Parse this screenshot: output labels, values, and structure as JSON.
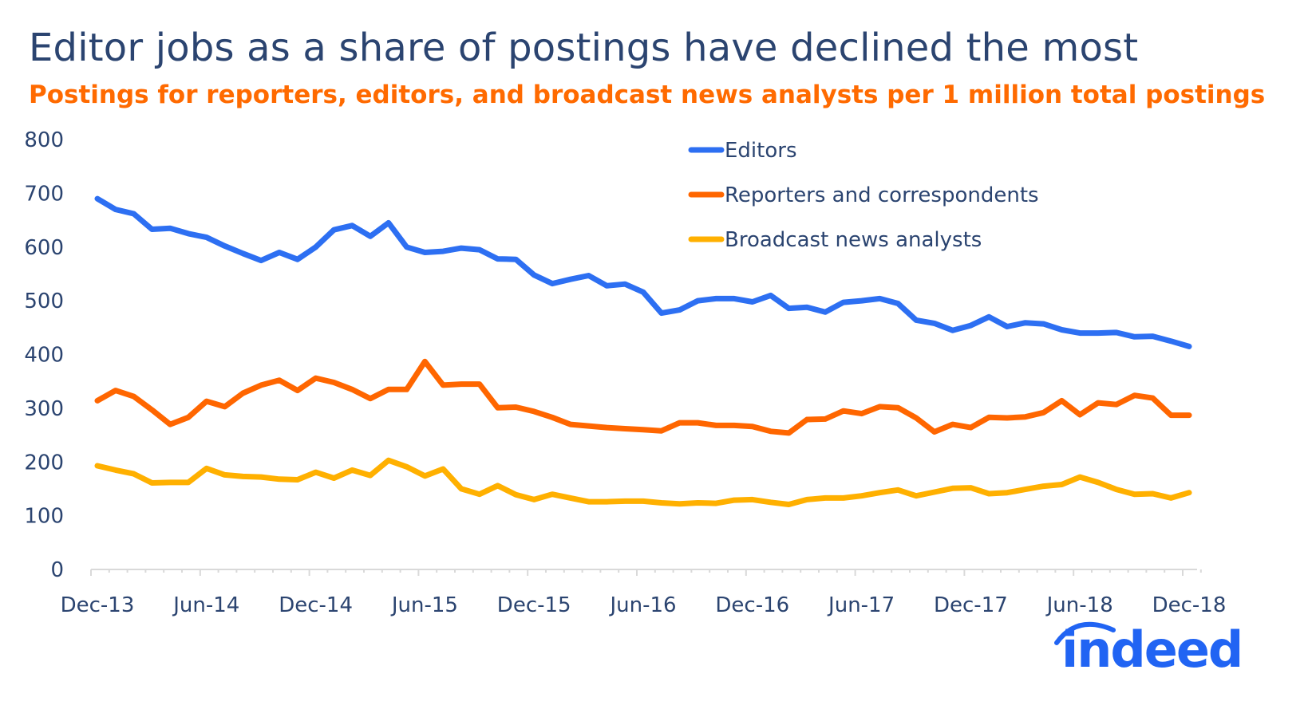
{
  "title": "Editor jobs as a share of postings have declined the most",
  "subtitle": "Postings for reporters, editors, and broadcast news analysts per 1 million total postings",
  "logo_text": "indeed",
  "chart_data": {
    "type": "line",
    "title": "Editor jobs as a share of postings have declined the most",
    "subtitle": "Postings for reporters, editors, and broadcast news analysts per 1 million total postings",
    "x_start": "Dec-13",
    "x_end": "Dec-18",
    "x_frequency": "monthly",
    "x_tick_labels": [
      "Dec-13",
      "Jun-14",
      "Dec-14",
      "Jun-15",
      "Dec-15",
      "Jun-16",
      "Dec-16",
      "Jun-17",
      "Dec-17",
      "Jun-18",
      "Dec-18"
    ],
    "y_tick_labels": [
      "0",
      "100",
      "200",
      "300",
      "400",
      "500",
      "600",
      "700",
      "800"
    ],
    "ylim": [
      0,
      800
    ],
    "grid": false,
    "legend_position": "top-right",
    "series": [
      {
        "name": "Editors",
        "color": "#2d6ff2",
        "values": [
          690,
          670,
          662,
          633,
          635,
          625,
          618,
          602,
          588,
          575,
          590,
          577,
          600,
          632,
          640,
          620,
          645,
          600,
          590,
          592,
          598,
          595,
          578,
          577,
          548,
          532,
          540,
          547,
          528,
          531,
          516,
          477,
          483,
          500,
          504,
          504,
          498,
          510,
          486,
          488,
          479,
          497,
          500,
          504,
          495,
          464,
          458,
          445,
          454,
          470,
          452,
          459,
          457,
          446,
          440,
          440,
          441,
          433,
          434,
          425,
          415
        ]
      },
      {
        "name": "Reporters and correspondents",
        "color": "#ff6600",
        "values": [
          314,
          333,
          322,
          297,
          270,
          283,
          313,
          303,
          328,
          343,
          352,
          333,
          356,
          348,
          335,
          318,
          335,
          335,
          387,
          343,
          345,
          345,
          301,
          302,
          294,
          283,
          270,
          267,
          264,
          262,
          260,
          258,
          273,
          273,
          268,
          268,
          266,
          257,
          254,
          279,
          280,
          295,
          290,
          303,
          301,
          282,
          256,
          270,
          264,
          283,
          282,
          284,
          292,
          314,
          288,
          310,
          307,
          324,
          319,
          287,
          287
        ]
      },
      {
        "name": "Broadcast news analysts",
        "color": "#ffb000",
        "values": [
          193,
          185,
          178,
          161,
          162,
          162,
          188,
          176,
          173,
          172,
          168,
          167,
          181,
          170,
          185,
          175,
          203,
          191,
          174,
          187,
          150,
          140,
          156,
          139,
          130,
          140,
          133,
          126,
          126,
          127,
          127,
          124,
          122,
          124,
          123,
          129,
          130,
          125,
          121,
          130,
          133,
          133,
          137,
          143,
          148,
          137,
          144,
          151,
          152,
          141,
          143,
          149,
          155,
          158,
          172,
          162,
          149,
          140,
          141,
          133,
          143
        ]
      }
    ]
  }
}
